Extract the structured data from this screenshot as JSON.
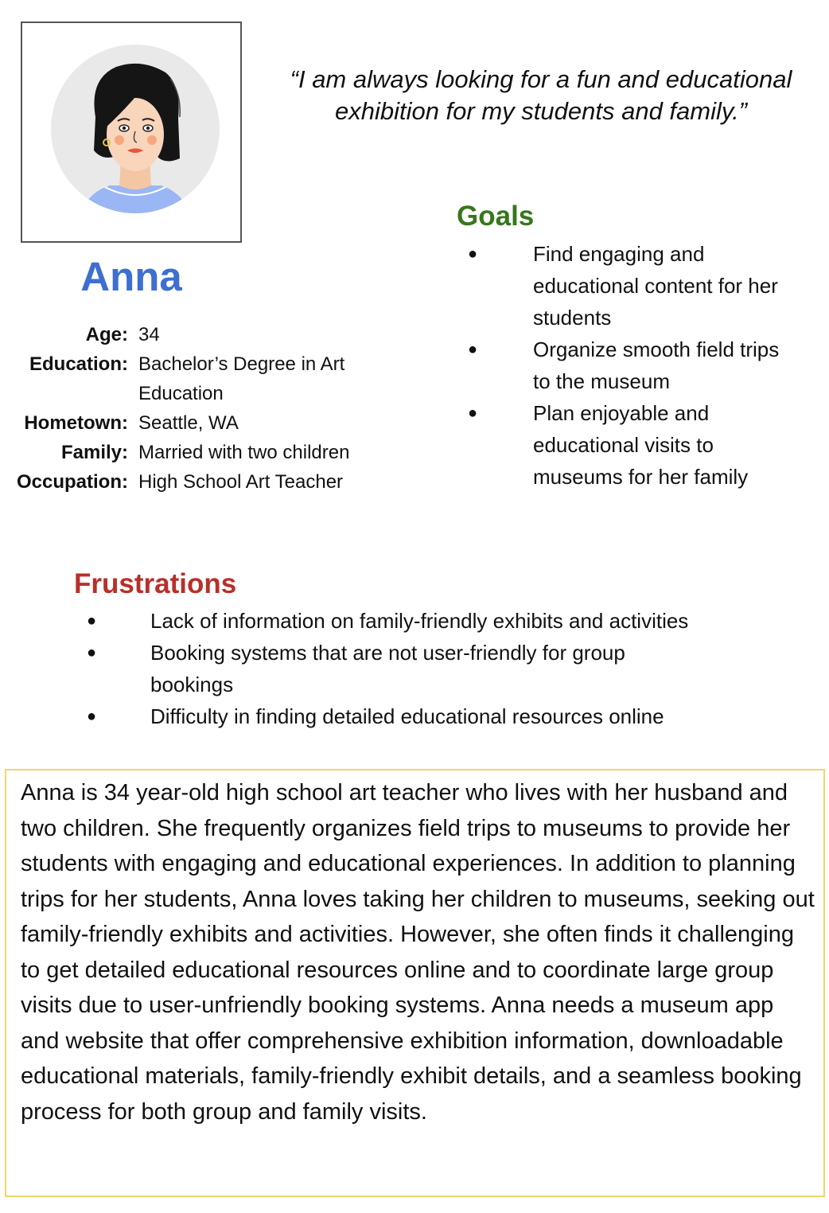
{
  "persona": {
    "name": "Anna",
    "quote": "“I am always looking for a fun and educational exhibition for my students and family.”"
  },
  "bio": [
    {
      "label": "Age:",
      "value": "34"
    },
    {
      "label": "Education:",
      "value": "Bachelor’s Degree in Art Education"
    },
    {
      "label": "Hometown:",
      "value": "Seattle, WA"
    },
    {
      "label": "Family:",
      "value": "Married with two children"
    },
    {
      "label": "Occupation:",
      "value": "High School Art Teacher"
    }
  ],
  "goals": {
    "heading": "Goals",
    "items": [
      "Find engaging and educational content for her students",
      "Organize smooth field trips to the museum",
      "Plan enjoyable and educational visits to museums for her family"
    ]
  },
  "frustrations": {
    "heading": "Frustrations",
    "items": [
      "Lack of information on family-friendly exhibits and activities",
      "Booking systems that are not user-friendly for group bookings",
      "Difficulty in finding detailed educational resources online"
    ]
  },
  "summary": "Anna is 34 year-old high school art teacher who lives with her husband and two children. She frequently organizes field trips to museums to provide her students with engaging and educational experiences. In addition to planning trips for her students, Anna loves taking her children to museums, seeking out family-friendly exhibits and activities. However, she often finds it challenging to get detailed educational resources online and to coordinate large group visits due to user-unfriendly booking systems. Anna needs a museum app and website that offer comprehensive exhibition information, downloadable educational materials, family-friendly exhibit details, and a seamless booking process for both group and family visits.",
  "bullet_glyph": "●",
  "colors": {
    "name": "#3e6fd0",
    "goals_heading": "#38761d",
    "frustrations_heading": "#b7302a",
    "summary_border": "#f1d56b"
  }
}
